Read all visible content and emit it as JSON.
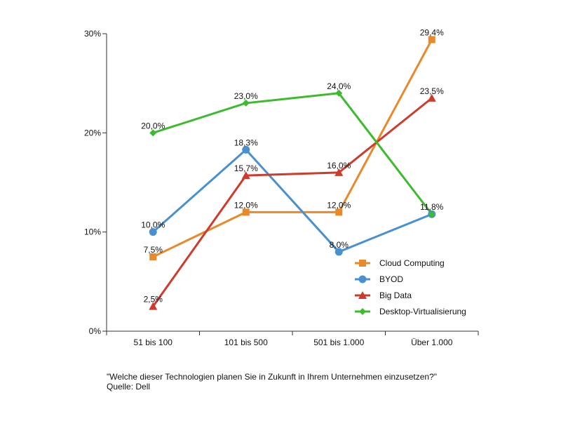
{
  "chart_data": {
    "type": "line",
    "categories": [
      "51 bis 100",
      "101 bis 500",
      "501 bis 1.000",
      "Über 1.000"
    ],
    "ylim": [
      0,
      30
    ],
    "yticks": [
      {
        "value": 0,
        "label": "0%"
      },
      {
        "value": 10,
        "label": "10%"
      },
      {
        "value": 20,
        "label": "20%"
      },
      {
        "value": 30,
        "label": "30%"
      }
    ],
    "grid": false,
    "legend_position": "bottom-right",
    "series": [
      {
        "name": "Cloud Computing",
        "color": "#e8892b",
        "marker": "square",
        "values": [
          7.5,
          12.0,
          12.0,
          29.4
        ],
        "labels": [
          "7,5%",
          "12,0%",
          "12,0%",
          "29,4%"
        ]
      },
      {
        "name": "BYOD",
        "color": "#4a90cf",
        "marker": "circle",
        "values": [
          10.0,
          18.3,
          8.0,
          11.8
        ],
        "labels": [
          "10,0%",
          "18,3%",
          "8,0%",
          "11,8%"
        ]
      },
      {
        "name": "Big Data",
        "color": "#cc3b2b",
        "marker": "triangle",
        "values": [
          2.5,
          15.7,
          16.0,
          23.5
        ],
        "labels": [
          "2,5%",
          "15,7%",
          "16,0%",
          "23,5%"
        ]
      },
      {
        "name": "Desktop-Virtualisierung",
        "color": "#3dbb2f",
        "marker": "diamond",
        "values": [
          20.0,
          23.0,
          24.0,
          11.8
        ],
        "labels": [
          "20,0%",
          "23,0%",
          "24,0%",
          ""
        ]
      }
    ]
  },
  "footer": {
    "question": "\"Welche dieser Technologien planen Sie in Zukunft in Ihrem Unternehmen einzusetzen?\"",
    "source": "Quelle: Dell"
  }
}
